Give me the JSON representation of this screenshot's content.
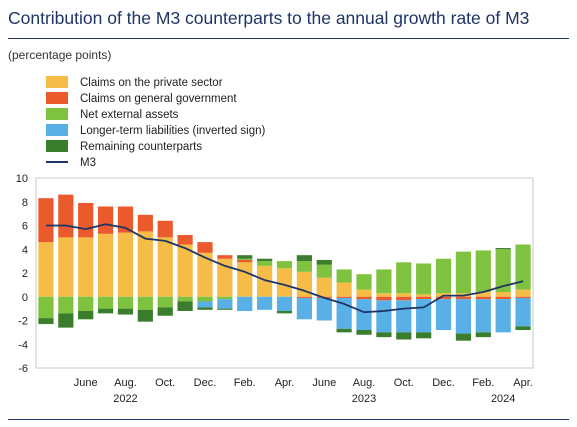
{
  "title": "Contribution of the M3 counterparts to the annual growth rate of M3",
  "subtitle": "(percentage points)",
  "colors": {
    "private": "#f5bd47",
    "government": "#ea5a2c",
    "external": "#7fc23f",
    "liabilities": "#58b0e6",
    "remaining": "#3a7d2c",
    "m3": "#1f3566"
  },
  "chart_data": {
    "type": "bar",
    "stacked": true,
    "ylim": [
      -6,
      10
    ],
    "yticks": [
      10,
      8,
      6,
      4,
      2,
      0,
      -2,
      -4,
      -6
    ],
    "grid": false,
    "legend_position": "top-left",
    "x_tick_labels": [
      {
        "index": 2,
        "label": "June"
      },
      {
        "index": 4,
        "label": "Aug."
      },
      {
        "index": 6,
        "label": "Oct."
      },
      {
        "index": 8,
        "label": "Dec."
      },
      {
        "index": 10,
        "label": "Feb."
      },
      {
        "index": 12,
        "label": "Apr."
      },
      {
        "index": 14,
        "label": "June"
      },
      {
        "index": 16,
        "label": "Aug."
      },
      {
        "index": 18,
        "label": "Oct."
      },
      {
        "index": 20,
        "label": "Dec."
      },
      {
        "index": 22,
        "label": "Feb."
      },
      {
        "index": 24,
        "label": "Apr."
      }
    ],
    "year_labels": [
      {
        "index": 4,
        "label": "2022"
      },
      {
        "index": 16,
        "label": "2023"
      },
      {
        "index": 23,
        "label": "2024"
      }
    ],
    "categories": [
      "Apr. 2022",
      "May 2022",
      "June 2022",
      "July 2022",
      "Aug. 2022",
      "Sep. 2022",
      "Oct. 2022",
      "Nov. 2022",
      "Dec. 2022",
      "Jan. 2023",
      "Feb. 2023",
      "Mar. 2023",
      "Apr. 2023",
      "May 2023",
      "June 2023",
      "July 2023",
      "Aug. 2023",
      "Sep. 2023",
      "Oct. 2023",
      "Nov. 2023",
      "Dec. 2023",
      "Jan. 2024",
      "Feb. 2024",
      "Mar. 2024",
      "Apr. 2024"
    ],
    "series": [
      {
        "key": "private",
        "name": "Claims on the private sector",
        "values": [
          4.6,
          5.0,
          5.0,
          5.3,
          5.4,
          5.5,
          5.0,
          4.4,
          3.7,
          3.2,
          2.9,
          2.6,
          2.4,
          2.1,
          1.6,
          1.2,
          0.6,
          0.3,
          0.3,
          0.2,
          0.3,
          0.3,
          0.4,
          0.4,
          0.6
        ]
      },
      {
        "key": "government",
        "name": "Claims on general government",
        "values": [
          3.7,
          3.6,
          2.9,
          2.3,
          2.2,
          1.4,
          1.4,
          0.8,
          0.9,
          0.3,
          0.2,
          0.0,
          0.0,
          -0.1,
          -0.1,
          -0.1,
          -0.2,
          -0.3,
          -0.3,
          -0.2,
          -0.2,
          -0.2,
          -0.2,
          -0.2,
          -0.1
        ]
      },
      {
        "key": "external",
        "name": "Net external assets",
        "values": [
          -1.8,
          -1.4,
          -1.2,
          -1.0,
          -1.0,
          -1.1,
          -0.9,
          -0.4,
          -0.4,
          -0.2,
          0.1,
          0.4,
          0.6,
          0.9,
          1.1,
          1.1,
          1.3,
          2.0,
          2.6,
          2.6,
          2.9,
          3.5,
          3.5,
          3.6,
          3.8
        ]
      },
      {
        "key": "liabilities",
        "name": "Longer-term liabilities (inverted sign)",
        "values": [
          0.0,
          0.0,
          0.0,
          0.0,
          0.0,
          0.0,
          0.0,
          0.0,
          -0.5,
          -0.8,
          -1.2,
          -1.1,
          -1.2,
          -1.8,
          -1.9,
          -2.6,
          -2.6,
          -2.7,
          -2.7,
          -2.8,
          -2.6,
          -2.9,
          -2.8,
          -2.8,
          -2.4
        ]
      },
      {
        "key": "remaining",
        "name": "Remaining counterparts",
        "values": [
          -0.5,
          -1.2,
          -0.7,
          -0.4,
          -0.5,
          -1.0,
          -0.7,
          -0.8,
          -0.2,
          -0.1,
          0.3,
          0.2,
          -0.2,
          0.5,
          0.4,
          -0.3,
          -0.4,
          -0.4,
          -0.6,
          -0.5,
          0.0,
          -0.6,
          -0.4,
          0.1,
          -0.3
        ]
      }
    ],
    "line": {
      "key": "m3",
      "name": "M3",
      "values": [
        6.0,
        6.0,
        5.7,
        6.1,
        5.8,
        4.9,
        4.7,
        4.1,
        3.3,
        2.6,
        2.1,
        1.4,
        1.0,
        0.5,
        -0.1,
        -0.6,
        -1.3,
        -1.2,
        -1.0,
        -0.9,
        0.1,
        0.1,
        0.4,
        0.9,
        1.3
      ]
    }
  }
}
